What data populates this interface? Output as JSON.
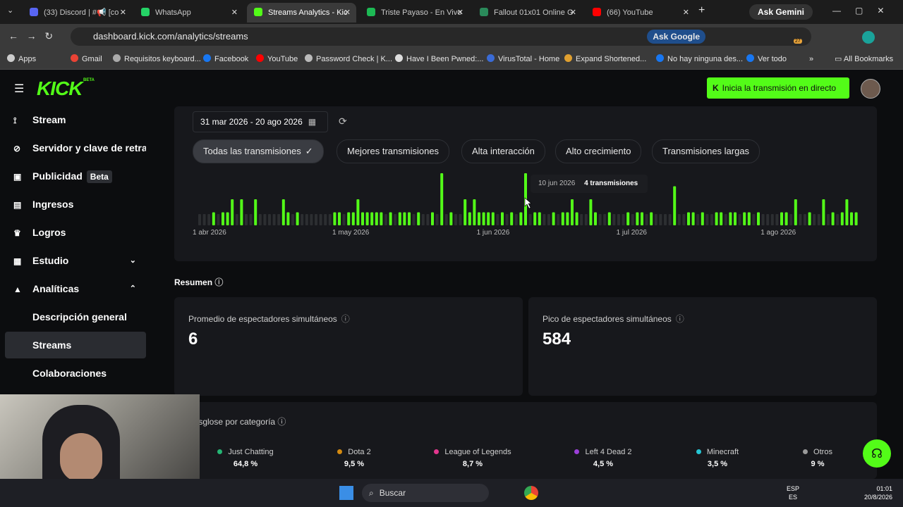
{
  "browser": {
    "tabs": [
      "(33) Discord | #📢 [co",
      "WhatsApp",
      "Streams Analytics - Kic",
      "Triste Payaso - En Vivo",
      "Fallout 01x01 Online G",
      "(66) YouTube"
    ],
    "active_tab": 2,
    "ask_gemini": "Ask Gemini",
    "url": "dashboard.kick.com/analytics/streams",
    "ask_google": "Ask Google",
    "extension_badge": "27",
    "bookmarks": [
      "Apps",
      "Gmail",
      "Requisitos keyboard...",
      "Facebook",
      "YouTube",
      "Password Check | K...",
      "Have I Been Pwned:...",
      "VirusTotal - Home",
      "Expand Shortened...",
      "No hay ninguna des...",
      "Ver todo"
    ],
    "all_bookmarks": "All Bookmarks"
  },
  "header": {
    "logo": "KICK",
    "badge": "BETA",
    "cta": "Inicia la transmisión en directo"
  },
  "sidebar": {
    "items": [
      "Stream",
      "Servidor y clave de retransmisión",
      "Publicidad",
      "Ingresos",
      "Logros",
      "Estudio",
      "Analíticas",
      "Descripción general",
      "Streams",
      "Colaboraciones"
    ],
    "badge": "Beta",
    "active": 8
  },
  "filters": {
    "date_range": "31 mar 2026 - 20 ago 2026",
    "chips": [
      "Todas las transmisiones",
      "Mejores transmisiones",
      "Alta interacción",
      "Alto crecimiento",
      "Transmisiones largas"
    ]
  },
  "stream_chart": {
    "x_labels": [
      "1 abr 2026",
      "1 may 2026",
      "1 jun 2026",
      "1 jul 2026",
      "1 ago 2026"
    ],
    "values": [
      0,
      0,
      0,
      1,
      0,
      1,
      1,
      2,
      0,
      2,
      0,
      0,
      2,
      0,
      0,
      0,
      0,
      0,
      2,
      1,
      0,
      1,
      0,
      0,
      0,
      0,
      0,
      0,
      0,
      1,
      1,
      0,
      1,
      1,
      2,
      1,
      1,
      1,
      1,
      1,
      0,
      1,
      0,
      1,
      1,
      1,
      0,
      1,
      0,
      0,
      1,
      0,
      4,
      0,
      1,
      0,
      0,
      2,
      1,
      2,
      1,
      1,
      1,
      1,
      0,
      1,
      0,
      1,
      0,
      1,
      4,
      0,
      1,
      1,
      0,
      0,
      1,
      0,
      1,
      1,
      2,
      1,
      0,
      0,
      2,
      1,
      0,
      0,
      1,
      0,
      0,
      0,
      1,
      0,
      1,
      1,
      0,
      1,
      0,
      0,
      0,
      0,
      3,
      0,
      0,
      1,
      1,
      0,
      1,
      0,
      0,
      1,
      1,
      0,
      1,
      1,
      0,
      1,
      1,
      0,
      1,
      0,
      0,
      0,
      0,
      1,
      1,
      0,
      2,
      0,
      0,
      1,
      0,
      0,
      2,
      0,
      1,
      0,
      1,
      2,
      1,
      1
    ],
    "tooltip": {
      "date": "10 jun 2026",
      "text": "4 transmisiones"
    }
  },
  "summary": {
    "title": "Resumen",
    "cards": [
      {
        "label": "Promedio de espectadores simultáneos",
        "value": 6
      },
      {
        "label": "Pico de espectadores simultáneos",
        "value": 584
      }
    ]
  },
  "categories": {
    "title": "Desglose por categoría",
    "items": [
      {
        "name": "Just Chatting",
        "value": 64.8,
        "value_label": "64,8 %",
        "color": "#25b574"
      },
      {
        "name": "Dota 2",
        "value": 9.5,
        "value_label": "9,5 %",
        "color": "#d48a10"
      },
      {
        "name": "League of Legends",
        "value": 8.7,
        "value_label": "8,7 %",
        "color": "#e3368e"
      },
      {
        "name": "Left 4 Dead 2",
        "value": 4.5,
        "value_label": "4,5 %",
        "color": "#9b3fd8"
      },
      {
        "name": "Minecraft",
        "value": 3.5,
        "value_label": "3,5 %",
        "color": "#26c6d4"
      },
      {
        "name": "Otros",
        "value": 9,
        "value_label": "9 %",
        "color": "#9a9a9a"
      }
    ]
  },
  "taskbar": {
    "search": "Buscar",
    "lang": "ESP",
    "region": "ES",
    "time": "01:01",
    "date": "20/8/2026"
  }
}
